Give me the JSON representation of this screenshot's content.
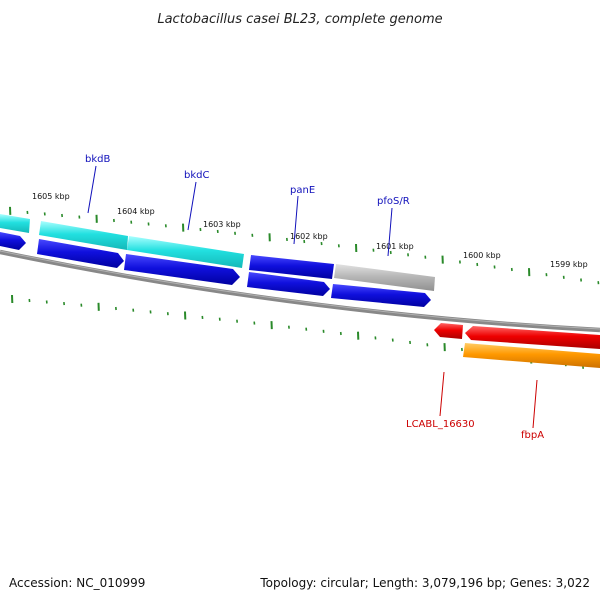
{
  "title": "Lactobacillus casei BL23, complete genome",
  "footer": {
    "accession": "Accession: NC_010999",
    "stats": "Topology: circular; Length: 3,079,196 bp; Genes: 3,022"
  },
  "ruler_labels": [
    "1605 kbp",
    "1604 kbp",
    "1603 kbp",
    "1602 kbp",
    "1601 kbp",
    "1600 kbp",
    "1599 kbp"
  ],
  "gene_labels": {
    "bkdB": "bkdB",
    "bkdC": "bkdC",
    "panE": "panE",
    "pfoS_R": "pfoS/R",
    "LCABL_16630": "LCABL_16630",
    "fbpA": "fbpA"
  },
  "colors": {
    "cyan": "#22e0e0",
    "blue": "#1010dd",
    "gray": "#b8b8b8",
    "red": "#ee0000",
    "orange": "#ff9900",
    "backbone": "#888888",
    "ticks": "#2a8a2a",
    "label_blue": "#1111bb",
    "label_red": "#cc0000"
  }
}
